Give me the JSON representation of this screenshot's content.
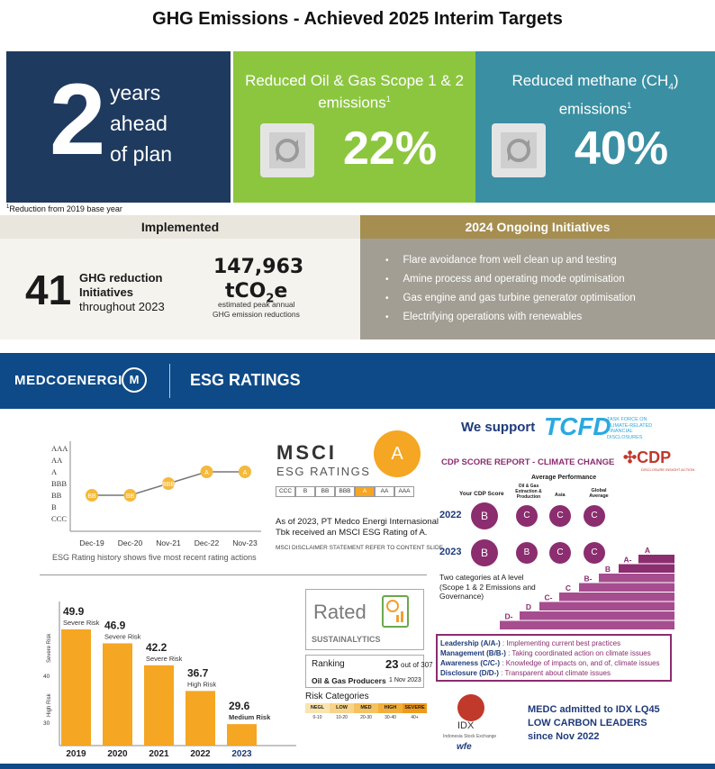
{
  "title": "GHG Emissions - Achieved 2025 Interim Targets",
  "tiles": {
    "plan_number": "2",
    "plan_lines": [
      "years",
      "ahead",
      "of plan"
    ],
    "og_caption": "Reduced Oil & Gas Scope 1 & 2 emissions",
    "og_sup": "1",
    "og_value": "22%",
    "methane_caption_a": "Reduced methane (CH",
    "methane_sub": "4",
    "methane_caption_b": ")",
    "methane_caption_c": "emissions",
    "methane_sup": "1",
    "methane_value": "40%"
  },
  "footnote_sup": "1",
  "footnote": "Reduction from 2019 base year",
  "implemented": {
    "heading": "Implemented",
    "count": "41",
    "line1": "GHG reduction",
    "line2": "Initiatives",
    "line3": "throughout 2023",
    "reduction_value": "147,963",
    "reduction_unit_a": "tCO",
    "reduction_unit_sub": "2",
    "reduction_unit_b": "e",
    "reduction_note1": "estimated peak annual",
    "reduction_note2": "GHG emission reductions"
  },
  "ongoing": {
    "heading": "2024 Ongoing Initiatives",
    "items": [
      "Flare avoidance from well clean up and testing",
      "Amine process and operating mode optimisation",
      "Gas engine and gas turbine generator optimisation",
      "Electrifying operations with renewables"
    ]
  },
  "banner": {
    "brand": "MEDCOENERGI",
    "title": "ESG RATINGS"
  },
  "msci_chart": {
    "caption": "ESG Rating history shows five most recent rating actions",
    "chart_data": {
      "type": "line",
      "ylabels": [
        "AAA",
        "AA",
        "A",
        "BBB",
        "BB",
        "B",
        "CCC"
      ],
      "categories": [
        "Dec-19",
        "Dec-20",
        "Nov-21",
        "Dec-22",
        "Nov-23"
      ],
      "values": [
        "BB",
        "BB",
        "BBB",
        "A",
        "A"
      ],
      "color": "#f5b93a"
    }
  },
  "msci": {
    "logo": "MSCI",
    "sub": "ESG RATINGS",
    "badge": "A",
    "scale": [
      "CCC",
      "B",
      "BB",
      "BBB",
      "A",
      "AA",
      "AAA"
    ],
    "active": "A",
    "statement1": "As of 2023, PT Medco Energi Internasional",
    "statement2": "Tbk received an MSCI ESG Rating of A.",
    "disclaimer": "MSCI DISCLAIMER STATEMENT REFER TO CONTENT SLIDE"
  },
  "risk_chart": {
    "chart_data": {
      "type": "bar",
      "categories": [
        "2019",
        "2020",
        "2021",
        "2022",
        "2023"
      ],
      "values": [
        49.9,
        46.9,
        42.2,
        36.7,
        29.6
      ],
      "labels": [
        "Severe Risk",
        "Severe Risk",
        "Severe Risk",
        "High Risk",
        "Medium Risk"
      ],
      "ylabel_high": "High Risk",
      "ylabel_severe": "Severe Risk",
      "yticks": [
        "40",
        "30"
      ],
      "ylim": [
        25,
        52
      ],
      "color": "#f5a623"
    }
  },
  "sustainalytics": {
    "rated": "Rated",
    "brand": "SUSTAINALYTICS",
    "ranking_label": "Ranking",
    "ranking_value": "23",
    "ranking_of": "out of 307",
    "industry": "Oil & Gas Producers",
    "date": "1 Nov 2023",
    "categories_label": "Risk Categories",
    "categories": [
      "NEGL",
      "LOW",
      "MED",
      "HIGH",
      "SEVERE"
    ],
    "ranges": [
      "0-10",
      "10-20",
      "20-30",
      "30-40",
      "40+"
    ]
  },
  "tcfd": {
    "lead": "We support",
    "logo": "TCFD",
    "small1": "TASK FORCE ON",
    "small2": "CLIMATE-RELATED",
    "small3": "FINANCIAL",
    "small4": "DISCLOSURES"
  },
  "cdp": {
    "title": "CDP SCORE REPORT - CLIMATE CHANGE",
    "logo": "CDP",
    "logo_sub": "DISCLOSURE INSIGHT ACTION",
    "avg_perf": "Average Performance",
    "col_your": "Your CDP Score",
    "col_oil": "Oil & Gas Extraction & Production",
    "col_asia": "Asia",
    "col_global": "Global Average",
    "years": [
      "2022",
      "2023"
    ],
    "scores": [
      [
        "B",
        "C",
        "C",
        "C"
      ],
      [
        "B",
        "B",
        "C",
        "C"
      ]
    ],
    "note": "Two categories at A level (Scope 1 & 2 Emissions and Governance)",
    "steps": [
      "D-",
      "D",
      "C-",
      "C",
      "B-",
      "B",
      "A-",
      "A"
    ],
    "legend": [
      {
        "k": "Leadership (A/A-)",
        "v": ": Implementing current best practices"
      },
      {
        "k": "Management (B/B-)",
        "v": ": Taking coordinated action on climate issues"
      },
      {
        "k": "Awareness (C/C-)",
        "v": ": Knowledge of impacts on, and of, climate issues"
      },
      {
        "k": "Disclosure (D/D-)",
        "v": ": Transparent about climate issues"
      }
    ]
  },
  "idx": {
    "logo": "IDX",
    "sub": "Indonesia Stock Exchange",
    "wfe": "wfe",
    "note1": "MEDC admitted to IDX LQ45",
    "note2": "LOW CARBON LEADERS",
    "note3": "since Nov 2022"
  },
  "colors": {
    "navy": "#1e3a5f",
    "green": "#8cc63f",
    "teal": "#3a8fa3",
    "gold": "#a68e50",
    "cdp_purple": "#8b2d6f",
    "banner_blue": "#0e4a87"
  }
}
